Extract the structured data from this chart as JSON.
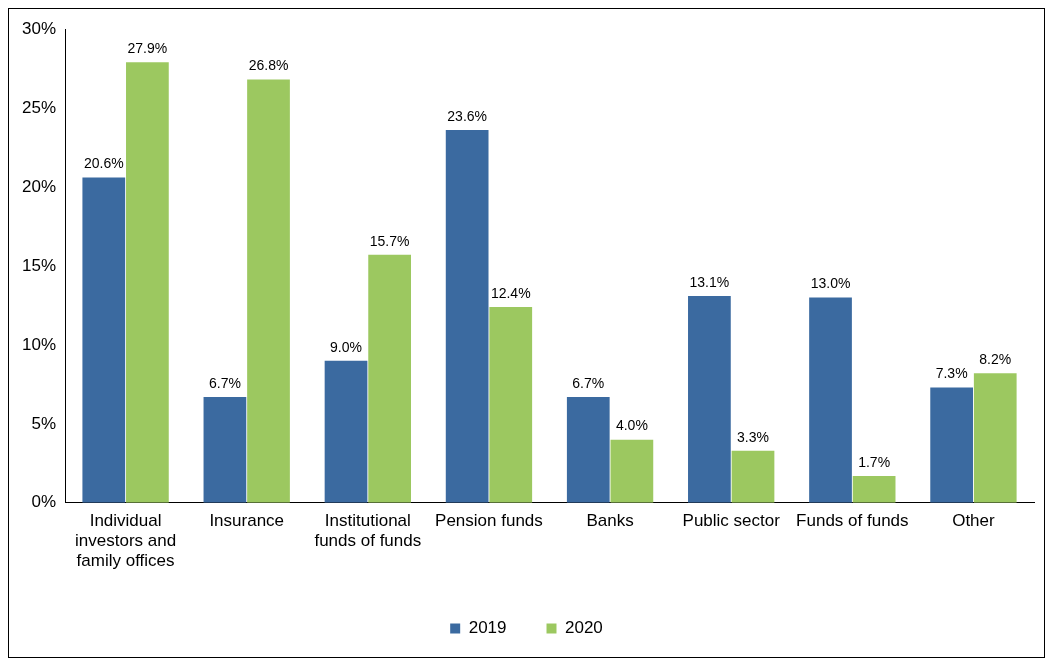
{
  "chart_data": {
    "type": "bar",
    "categories": [
      "Individual investors and family offices",
      "Insurance",
      "Institutional funds of funds",
      "Pension funds",
      "Banks",
      "Public sector",
      "Funds of funds",
      "Other"
    ],
    "series": [
      {
        "name": "2019",
        "color": "#3b6aa0",
        "values": [
          20.6,
          6.7,
          9.0,
          23.6,
          6.7,
          13.1,
          13.0,
          7.3
        ],
        "value_labels": [
          "20.6%",
          "6.7%",
          "9.0%",
          "23.6%",
          "6.7%",
          "13.1%",
          "13.0%",
          "7.3%"
        ]
      },
      {
        "name": "2020",
        "color": "#9cc860",
        "values": [
          27.9,
          26.8,
          15.7,
          12.4,
          4.0,
          3.3,
          1.7,
          8.2
        ],
        "value_labels": [
          "27.9%",
          "26.8%",
          "15.7%",
          "12.4%",
          "4.0%",
          "3.3%",
          "1.7%",
          "8.2%"
        ]
      }
    ],
    "ylim": [
      0,
      30
    ],
    "yticks": [
      {
        "value": 0,
        "label": "0%"
      },
      {
        "value": 5,
        "label": "5%"
      },
      {
        "value": 10,
        "label": "10%"
      },
      {
        "value": 15,
        "label": "15%"
      },
      {
        "value": 20,
        "label": "20%"
      },
      {
        "value": 25,
        "label": "25%"
      },
      {
        "value": 30,
        "label": "30%"
      }
    ],
    "grid": false,
    "legend": "bottom"
  }
}
